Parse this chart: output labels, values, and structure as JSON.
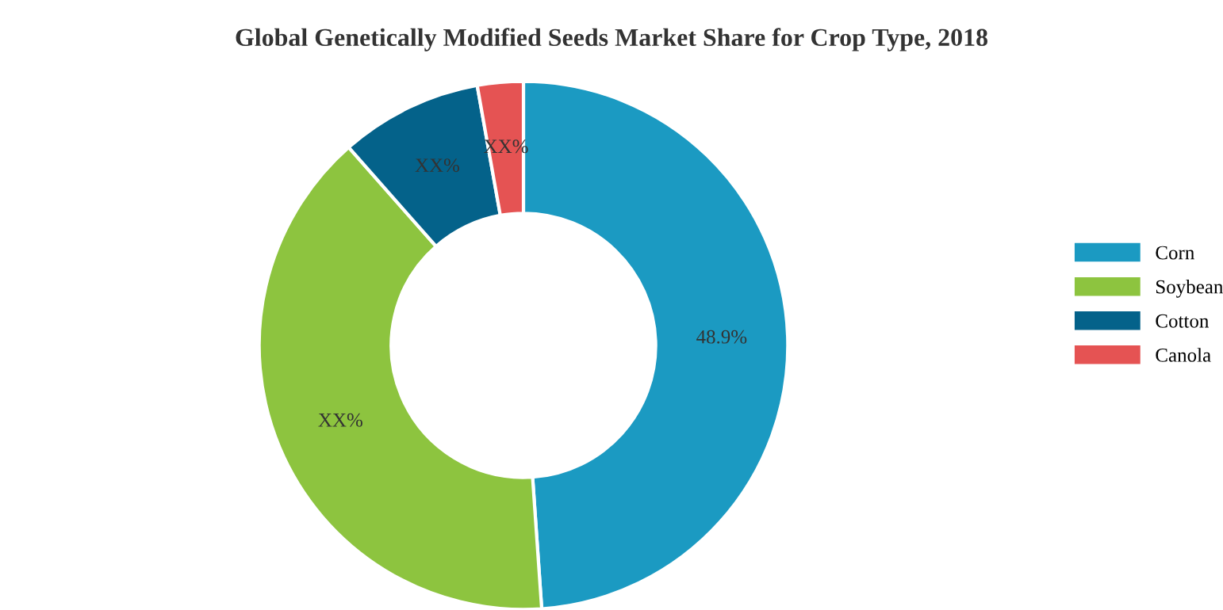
{
  "chart_data": {
    "type": "donut",
    "title": "Global Genetically Modified Seeds Market Share for Crop Type, 2018",
    "categories": [
      "Corn",
      "Soybean",
      "Cotton",
      "Canola"
    ],
    "values": [
      48.9,
      39.6,
      8.7,
      2.8
    ],
    "colors": [
      "#1b9ac2",
      "#8dc43f",
      "#04628a",
      "#e55353"
    ],
    "value_labels": [
      "48.9%",
      "XX%",
      "XX%",
      "XX%"
    ],
    "legend": "right"
  }
}
